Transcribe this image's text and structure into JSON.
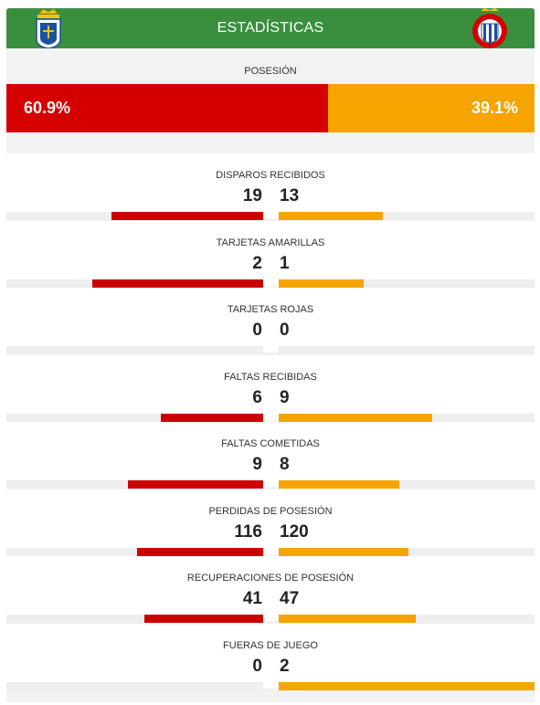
{
  "header": {
    "title": "ESTADÍSTICAS"
  },
  "colors": {
    "header_bg": "#3a8f3f",
    "home": "#d50000",
    "away": "#f5a400"
  },
  "icons": {
    "home_crest": "real-oviedo-crest-icon",
    "away_crest": "rcd-espanyol-crest-icon"
  },
  "possession": {
    "label": "POSESIÓN",
    "home": "60.9%",
    "away": "39.1%",
    "home_fraction": 0.609
  },
  "stats": [
    {
      "label": "DISPAROS RECIBIDOS",
      "home": "19",
      "away": "13"
    },
    {
      "label": "TARJETAS AMARILLAS",
      "home": "2",
      "away": "1"
    },
    {
      "label": "TARJETAS ROJAS",
      "home": "0",
      "away": "0"
    },
    {
      "label": "FALTAS RECIBIDAS",
      "home": "6",
      "away": "9"
    },
    {
      "label": "FALTAS COMETIDAS",
      "home": "9",
      "away": "8"
    },
    {
      "label": "PERDIDAS DE POSESIÓN",
      "home": "116",
      "away": "120"
    },
    {
      "label": "RECUPERACIONES DE POSESIÓN",
      "home": "41",
      "away": "47"
    },
    {
      "label": "FUERAS DE JUEGO",
      "home": "0",
      "away": "2"
    }
  ]
}
